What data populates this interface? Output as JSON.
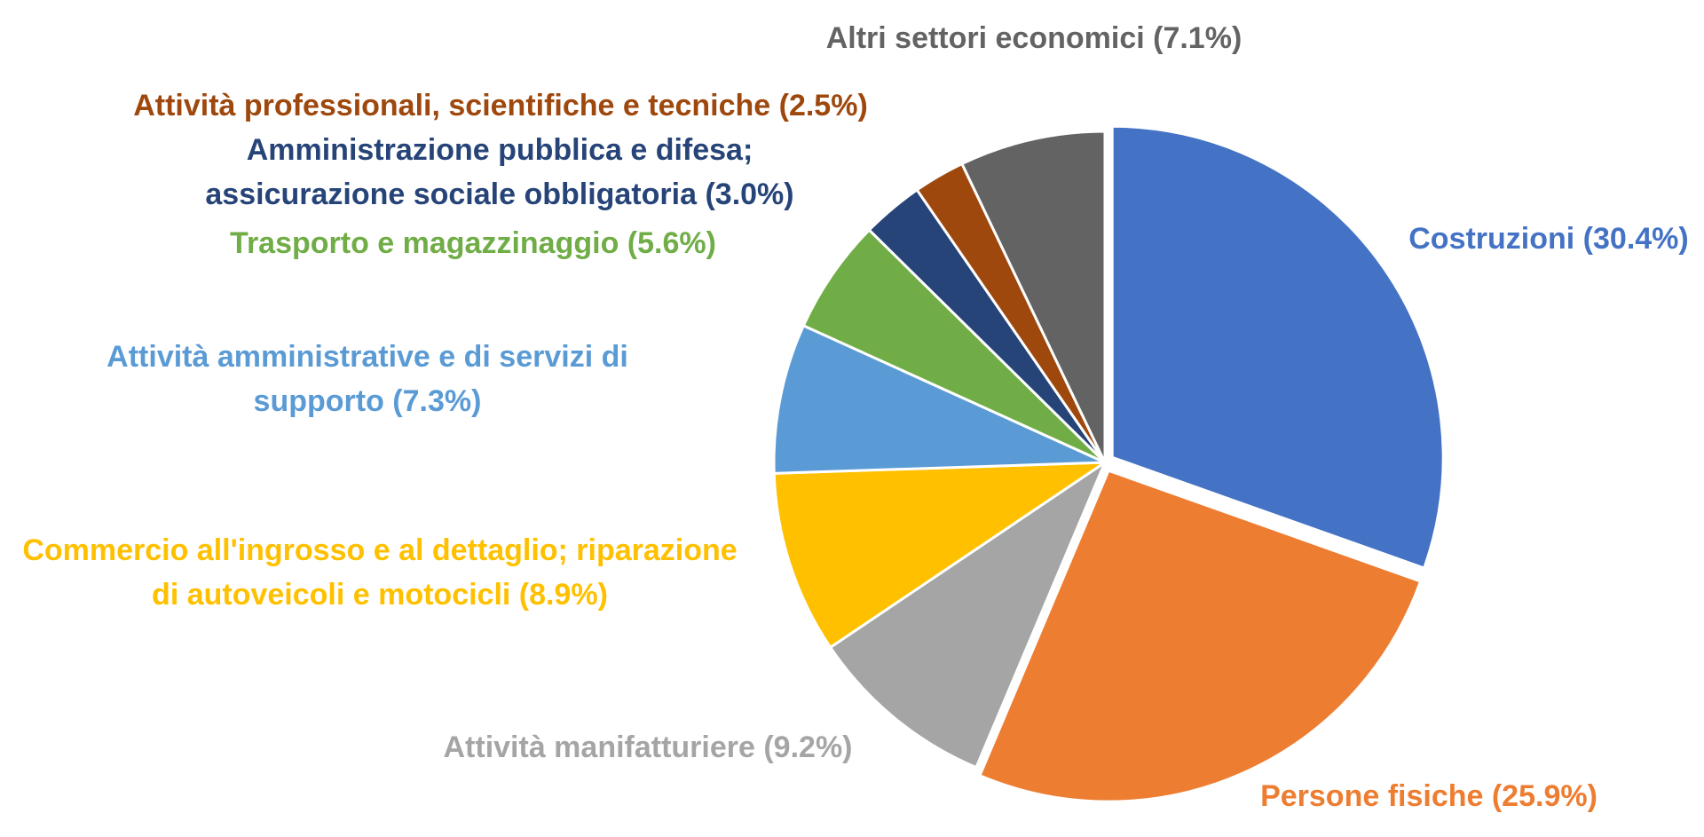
{
  "chart_data": {
    "type": "pie",
    "title": "",
    "start_angle_deg": 0,
    "direction": "clockwise",
    "slices": [
      {
        "label_lines": [
          "Costruzioni (30.4%)"
        ],
        "value": 30.4,
        "color": "#4472C4",
        "label_color": "#4472C4",
        "exploded": true
      },
      {
        "label_lines": [
          "Persone fisiche (25.9%)"
        ],
        "value": 25.9,
        "color": "#ED7D31",
        "label_color": "#ED7D31",
        "exploded": true
      },
      {
        "label_lines": [
          "Attività manifatturiere (9.2%)"
        ],
        "value": 9.2,
        "color": "#A5A5A5",
        "label_color": "#A5A5A5",
        "exploded": false
      },
      {
        "label_lines": [
          "Commercio all'ingrosso e al dettaglio; riparazione",
          "di autoveicoli e motocicli (8.9%)"
        ],
        "value": 8.9,
        "color": "#FFC000",
        "label_color": "#FFC000",
        "exploded": false
      },
      {
        "label_lines": [
          "Attività amministrative e di servizi di",
          "supporto (7.3%)"
        ],
        "value": 7.3,
        "color": "#5B9BD5",
        "label_color": "#5B9BD5",
        "exploded": false
      },
      {
        "label_lines": [
          "Trasporto e magazzinaggio (5.6%)"
        ],
        "value": 5.6,
        "color": "#70AD47",
        "label_color": "#70AD47",
        "exploded": false
      },
      {
        "label_lines": [
          "Amministrazione pubblica e difesa;",
          "assicurazione sociale obbligatoria (3.0%)"
        ],
        "value": 3.0,
        "color": "#264478",
        "label_color": "#264478",
        "exploded": false
      },
      {
        "label_lines": [
          "Attività professionali, scientifiche e tecniche (2.5%)"
        ],
        "value": 2.5,
        "color": "#9E480E",
        "label_color": "#9E480E",
        "exploded": false
      },
      {
        "label_lines": [
          "Altri settori economici (7.1%)"
        ],
        "value": 7.1,
        "color": "#636363",
        "label_color": "#636363",
        "exploded": false
      }
    ]
  }
}
